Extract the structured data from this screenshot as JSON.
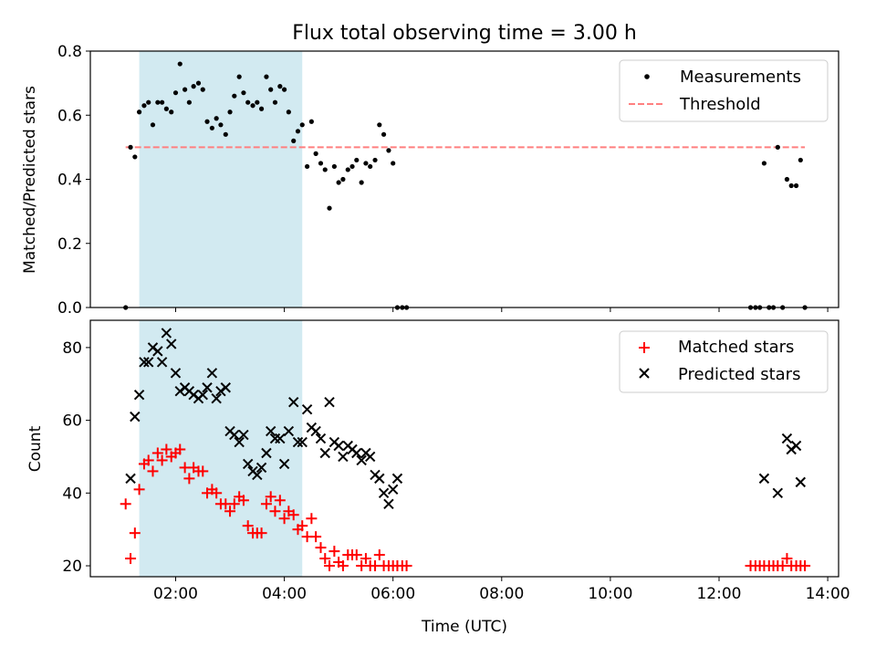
{
  "title": "Flux total observing time = 3.00 h",
  "colors": {
    "shade": "#add8e6",
    "threshold": "#ff7f7f",
    "measurement": "#000000",
    "matched": "#ff0000",
    "predicted": "#000000"
  },
  "chart_data": [
    {
      "type": "scatter",
      "ylabel": "Matched/Predicted stars",
      "xlabel": "",
      "xlim": [
        0.43,
        14.2
      ],
      "ylim": [
        0.0,
        0.8
      ],
      "yticks": [
        0.0,
        0.2,
        0.4,
        0.6,
        0.8
      ],
      "yticklabels": [
        "0.0",
        "0.2",
        "0.4",
        "0.6",
        "0.8"
      ],
      "shaded_span": [
        1.33,
        4.33
      ],
      "legend_position": "top-right",
      "threshold": {
        "name": "Threshold",
        "y": 0.5,
        "x_range": [
          1.08,
          13.58
        ],
        "style": "dashed"
      },
      "series": [
        {
          "name": "Measurements",
          "marker": "dot",
          "points": [
            [
              1.08,
              0.0
            ],
            [
              1.17,
              0.5
            ],
            [
              1.25,
              0.47
            ],
            [
              1.33,
              0.61
            ],
            [
              1.42,
              0.63
            ],
            [
              1.5,
              0.64
            ],
            [
              1.58,
              0.57
            ],
            [
              1.67,
              0.64
            ],
            [
              1.75,
              0.64
            ],
            [
              1.83,
              0.62
            ],
            [
              1.92,
              0.61
            ],
            [
              2.0,
              0.67
            ],
            [
              2.08,
              0.76
            ],
            [
              2.17,
              0.68
            ],
            [
              2.25,
              0.64
            ],
            [
              2.33,
              0.69
            ],
            [
              2.42,
              0.7
            ],
            [
              2.5,
              0.68
            ],
            [
              2.58,
              0.58
            ],
            [
              2.67,
              0.56
            ],
            [
              2.75,
              0.59
            ],
            [
              2.83,
              0.57
            ],
            [
              2.92,
              0.54
            ],
            [
              3.0,
              0.61
            ],
            [
              3.08,
              0.66
            ],
            [
              3.17,
              0.72
            ],
            [
              3.25,
              0.67
            ],
            [
              3.33,
              0.64
            ],
            [
              3.42,
              0.63
            ],
            [
              3.5,
              0.64
            ],
            [
              3.58,
              0.62
            ],
            [
              3.67,
              0.72
            ],
            [
              3.75,
              0.68
            ],
            [
              3.83,
              0.64
            ],
            [
              3.92,
              0.69
            ],
            [
              4.0,
              0.68
            ],
            [
              4.08,
              0.61
            ],
            [
              4.17,
              0.52
            ],
            [
              4.25,
              0.55
            ],
            [
              4.33,
              0.57
            ],
            [
              4.42,
              0.44
            ],
            [
              4.5,
              0.58
            ],
            [
              4.58,
              0.48
            ],
            [
              4.67,
              0.45
            ],
            [
              4.75,
              0.43
            ],
            [
              4.83,
              0.31
            ],
            [
              4.92,
              0.44
            ],
            [
              5.0,
              0.39
            ],
            [
              5.08,
              0.4
            ],
            [
              5.17,
              0.43
            ],
            [
              5.25,
              0.44
            ],
            [
              5.33,
              0.46
            ],
            [
              5.42,
              0.39
            ],
            [
              5.5,
              0.45
            ],
            [
              5.58,
              0.44
            ],
            [
              5.67,
              0.46
            ],
            [
              5.75,
              0.57
            ],
            [
              5.83,
              0.54
            ],
            [
              5.92,
              0.49
            ],
            [
              6.0,
              0.45
            ],
            [
              6.08,
              0.0
            ],
            [
              6.17,
              0.0
            ],
            [
              6.25,
              0.0
            ],
            [
              12.58,
              0.0
            ],
            [
              12.67,
              0.0
            ],
            [
              12.75,
              0.0
            ],
            [
              12.83,
              0.45
            ],
            [
              12.92,
              0.0
            ],
            [
              13.0,
              0.0
            ],
            [
              13.08,
              0.5
            ],
            [
              13.17,
              0.0
            ],
            [
              13.25,
              0.4
            ],
            [
              13.33,
              0.38
            ],
            [
              13.42,
              0.38
            ],
            [
              13.5,
              0.46
            ],
            [
              13.58,
              0.0
            ]
          ]
        }
      ]
    },
    {
      "type": "scatter",
      "ylabel": "Count",
      "xlabel": "Time (UTC)",
      "xlim": [
        0.43,
        14.2
      ],
      "ylim": [
        17,
        87.5
      ],
      "xticks": [
        2,
        4,
        6,
        8,
        10,
        12,
        14
      ],
      "xticklabels": [
        "02:00",
        "04:00",
        "06:00",
        "08:00",
        "10:00",
        "12:00",
        "14:00"
      ],
      "yticks": [
        20,
        40,
        60,
        80
      ],
      "yticklabels": [
        "20",
        "40",
        "60",
        "80"
      ],
      "shaded_span": [
        1.33,
        4.33
      ],
      "legend_position": "top-right",
      "series": [
        {
          "name": "Matched stars",
          "marker": "plus",
          "points": [
            [
              1.08,
              37
            ],
            [
              1.17,
              22
            ],
            [
              1.25,
              29
            ],
            [
              1.33,
              41
            ],
            [
              1.42,
              48
            ],
            [
              1.5,
              49
            ],
            [
              1.58,
              46
            ],
            [
              1.67,
              51
            ],
            [
              1.75,
              49
            ],
            [
              1.83,
              52
            ],
            [
              1.92,
              50
            ],
            [
              2.0,
              51
            ],
            [
              2.08,
              52
            ],
            [
              2.17,
              47
            ],
            [
              2.25,
              44
            ],
            [
              2.33,
              47
            ],
            [
              2.42,
              46
            ],
            [
              2.5,
              46
            ],
            [
              2.58,
              40
            ],
            [
              2.67,
              41
            ],
            [
              2.75,
              40
            ],
            [
              2.83,
              37
            ],
            [
              2.92,
              37
            ],
            [
              3.0,
              35
            ],
            [
              3.08,
              37
            ],
            [
              3.17,
              39
            ],
            [
              3.25,
              38
            ],
            [
              3.33,
              31
            ],
            [
              3.42,
              29
            ],
            [
              3.5,
              29
            ],
            [
              3.58,
              29
            ],
            [
              3.67,
              37
            ],
            [
              3.75,
              39
            ],
            [
              3.83,
              35
            ],
            [
              3.92,
              38
            ],
            [
              4.0,
              33
            ],
            [
              4.08,
              35
            ],
            [
              4.17,
              34
            ],
            [
              4.25,
              30
            ],
            [
              4.33,
              31
            ],
            [
              4.42,
              28
            ],
            [
              4.5,
              33
            ],
            [
              4.58,
              28
            ],
            [
              4.67,
              25
            ],
            [
              4.75,
              22
            ],
            [
              4.83,
              20
            ],
            [
              4.92,
              24
            ],
            [
              5.0,
              21
            ],
            [
              5.08,
              20
            ],
            [
              5.17,
              23
            ],
            [
              5.25,
              23
            ],
            [
              5.33,
              23
            ],
            [
              5.42,
              20
            ],
            [
              5.5,
              22
            ],
            [
              5.58,
              20
            ],
            [
              5.67,
              20
            ],
            [
              5.75,
              23
            ],
            [
              5.83,
              20
            ],
            [
              5.92,
              20
            ],
            [
              6.0,
              20
            ],
            [
              6.08,
              20
            ],
            [
              6.17,
              20
            ],
            [
              6.25,
              20
            ],
            [
              12.58,
              20
            ],
            [
              12.67,
              20
            ],
            [
              12.75,
              20
            ],
            [
              12.83,
              20
            ],
            [
              12.92,
              20
            ],
            [
              13.0,
              20
            ],
            [
              13.08,
              20
            ],
            [
              13.17,
              20
            ],
            [
              13.25,
              22
            ],
            [
              13.33,
              20
            ],
            [
              13.42,
              20
            ],
            [
              13.5,
              20
            ],
            [
              13.58,
              20
            ]
          ]
        },
        {
          "name": "Predicted stars",
          "marker": "x",
          "points": [
            [
              1.17,
              44
            ],
            [
              1.25,
              61
            ],
            [
              1.33,
              67
            ],
            [
              1.42,
              76
            ],
            [
              1.5,
              76
            ],
            [
              1.58,
              80
            ],
            [
              1.67,
              79
            ],
            [
              1.75,
              76
            ],
            [
              1.83,
              84
            ],
            [
              1.92,
              81
            ],
            [
              2.0,
              73
            ],
            [
              2.08,
              68
            ],
            [
              2.17,
              69
            ],
            [
              2.25,
              68
            ],
            [
              2.33,
              67
            ],
            [
              2.42,
              66
            ],
            [
              2.5,
              67
            ],
            [
              2.58,
              69
            ],
            [
              2.67,
              73
            ],
            [
              2.75,
              66
            ],
            [
              2.83,
              68
            ],
            [
              2.92,
              69
            ],
            [
              3.0,
              57
            ],
            [
              3.08,
              56
            ],
            [
              3.17,
              54
            ],
            [
              3.25,
              56
            ],
            [
              3.33,
              48
            ],
            [
              3.42,
              46
            ],
            [
              3.5,
              45
            ],
            [
              3.58,
              47
            ],
            [
              3.67,
              51
            ],
            [
              3.75,
              57
            ],
            [
              3.83,
              55
            ],
            [
              3.92,
              55
            ],
            [
              4.0,
              48
            ],
            [
              4.08,
              57
            ],
            [
              4.17,
              65
            ],
            [
              4.25,
              54
            ],
            [
              4.33,
              54
            ],
            [
              4.42,
              63
            ],
            [
              4.5,
              58
            ],
            [
              4.58,
              57
            ],
            [
              4.67,
              55
            ],
            [
              4.75,
              51
            ],
            [
              4.83,
              65
            ],
            [
              4.92,
              54
            ],
            [
              5.0,
              53
            ],
            [
              5.08,
              50
            ],
            [
              5.17,
              53
            ],
            [
              5.25,
              52
            ],
            [
              5.33,
              51
            ],
            [
              5.42,
              49
            ],
            [
              5.5,
              51
            ],
            [
              5.58,
              50
            ],
            [
              5.67,
              45
            ],
            [
              5.75,
              44
            ],
            [
              5.83,
              40
            ],
            [
              5.92,
              37
            ],
            [
              6.0,
              41
            ],
            [
              6.08,
              44
            ],
            [
              12.83,
              44
            ],
            [
              13.08,
              40
            ],
            [
              13.25,
              55
            ],
            [
              13.33,
              52
            ],
            [
              13.42,
              53
            ],
            [
              13.5,
              43
            ]
          ]
        }
      ]
    }
  ]
}
